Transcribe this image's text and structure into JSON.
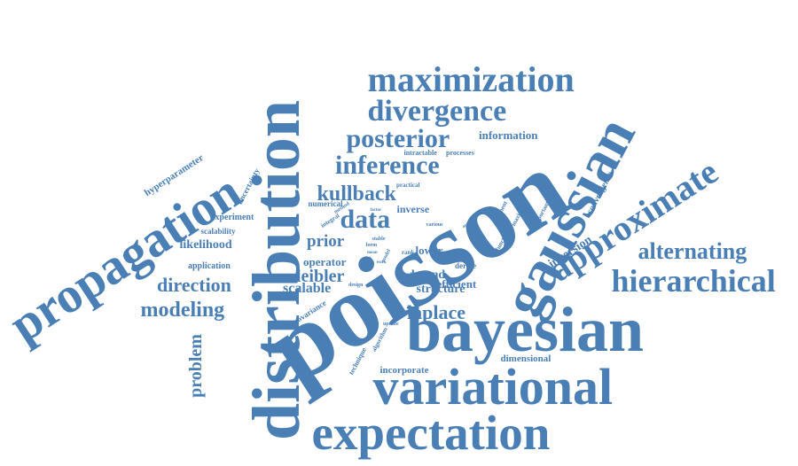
{
  "color": "#4a7fb6",
  "words": [
    {
      "text": "poisson"
    },
    {
      "text": "distribution"
    },
    {
      "text": "bayesian"
    },
    {
      "text": "variational"
    },
    {
      "text": "expectation"
    },
    {
      "text": "propagation"
    },
    {
      "text": "gaussian"
    },
    {
      "text": "approximate"
    },
    {
      "text": "maximization"
    },
    {
      "text": "hierarchical"
    },
    {
      "text": "divergence"
    },
    {
      "text": "inference"
    },
    {
      "text": "alternating"
    },
    {
      "text": "posterior"
    },
    {
      "text": "data"
    },
    {
      "text": "kullback"
    },
    {
      "text": "modeling"
    },
    {
      "text": "direction"
    },
    {
      "text": "problem"
    },
    {
      "text": "laplace"
    },
    {
      "text": "prior"
    },
    {
      "text": "leibler"
    },
    {
      "text": "likelihood"
    },
    {
      "text": "scalable"
    },
    {
      "text": "information"
    },
    {
      "text": "inversion"
    },
    {
      "text": "structure"
    },
    {
      "text": "bound"
    },
    {
      "text": "efficient"
    },
    {
      "text": "operator"
    },
    {
      "text": "incorporate"
    },
    {
      "text": "dimensional"
    },
    {
      "text": "convergence"
    },
    {
      "text": "inverse"
    },
    {
      "text": "lower"
    },
    {
      "text": "hyperparameter"
    },
    {
      "text": "uncertainty"
    },
    {
      "text": "experiment"
    },
    {
      "text": "scalability"
    },
    {
      "text": "application"
    },
    {
      "text": "numerical"
    },
    {
      "text": "covariance"
    },
    {
      "text": "intractable"
    },
    {
      "text": "processes"
    },
    {
      "text": "practical"
    },
    {
      "text": "derive"
    },
    {
      "text": "analyze"
    },
    {
      "text": "maximum"
    },
    {
      "text": "important"
    },
    {
      "text": "functional"
    },
    {
      "text": "moment"
    },
    {
      "text": "algorithm"
    },
    {
      "text": "technique"
    },
    {
      "text": "update"
    },
    {
      "text": "design"
    },
    {
      "text": "integral"
    },
    {
      "text": "method"
    },
    {
      "text": "stable"
    },
    {
      "text": "form"
    },
    {
      "text": "factor"
    },
    {
      "text": "rank"
    },
    {
      "text": "various"
    },
    {
      "text": "count"
    },
    {
      "text": "optimal"
    },
    {
      "text": "model"
    },
    {
      "text": "mean"
    },
    {
      "text": "work"
    },
    {
      "text": "article"
    }
  ]
}
